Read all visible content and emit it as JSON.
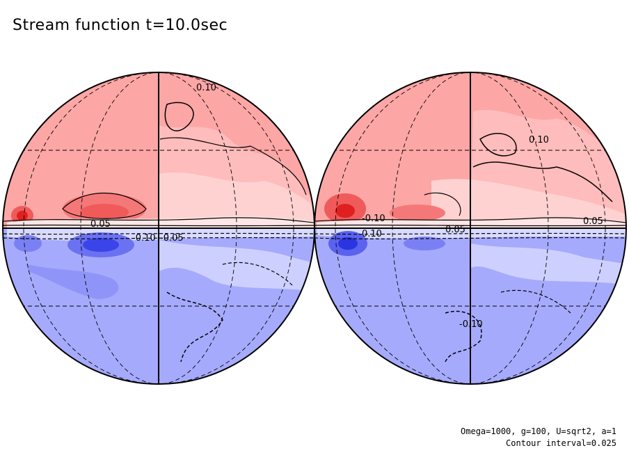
{
  "title": "Stream function t=10.0sec",
  "footer": {
    "params": "Omega=1000, g=100, U=sqrt2, a=1",
    "contour_interval": "Contour interval=0.025"
  },
  "colors": {
    "positive_light": "#ffd2d2",
    "positive_mid": "#fca6a6",
    "positive_dark": "#f05a5a",
    "negative_light": "#cdd0ff",
    "negative_mid": "#a6aafc",
    "negative_dark": "#3a44e8",
    "outline": "#000000"
  },
  "globes": [
    {
      "name": "left-hemisphere",
      "contour_labels": [
        "0.10",
        "-0.10",
        "-0.05",
        "0.05"
      ]
    },
    {
      "name": "right-hemisphere",
      "contour_labels": [
        "0.10",
        "0.05",
        "-0.10",
        "0.10",
        "0.05",
        "-0.10"
      ]
    }
  ]
}
